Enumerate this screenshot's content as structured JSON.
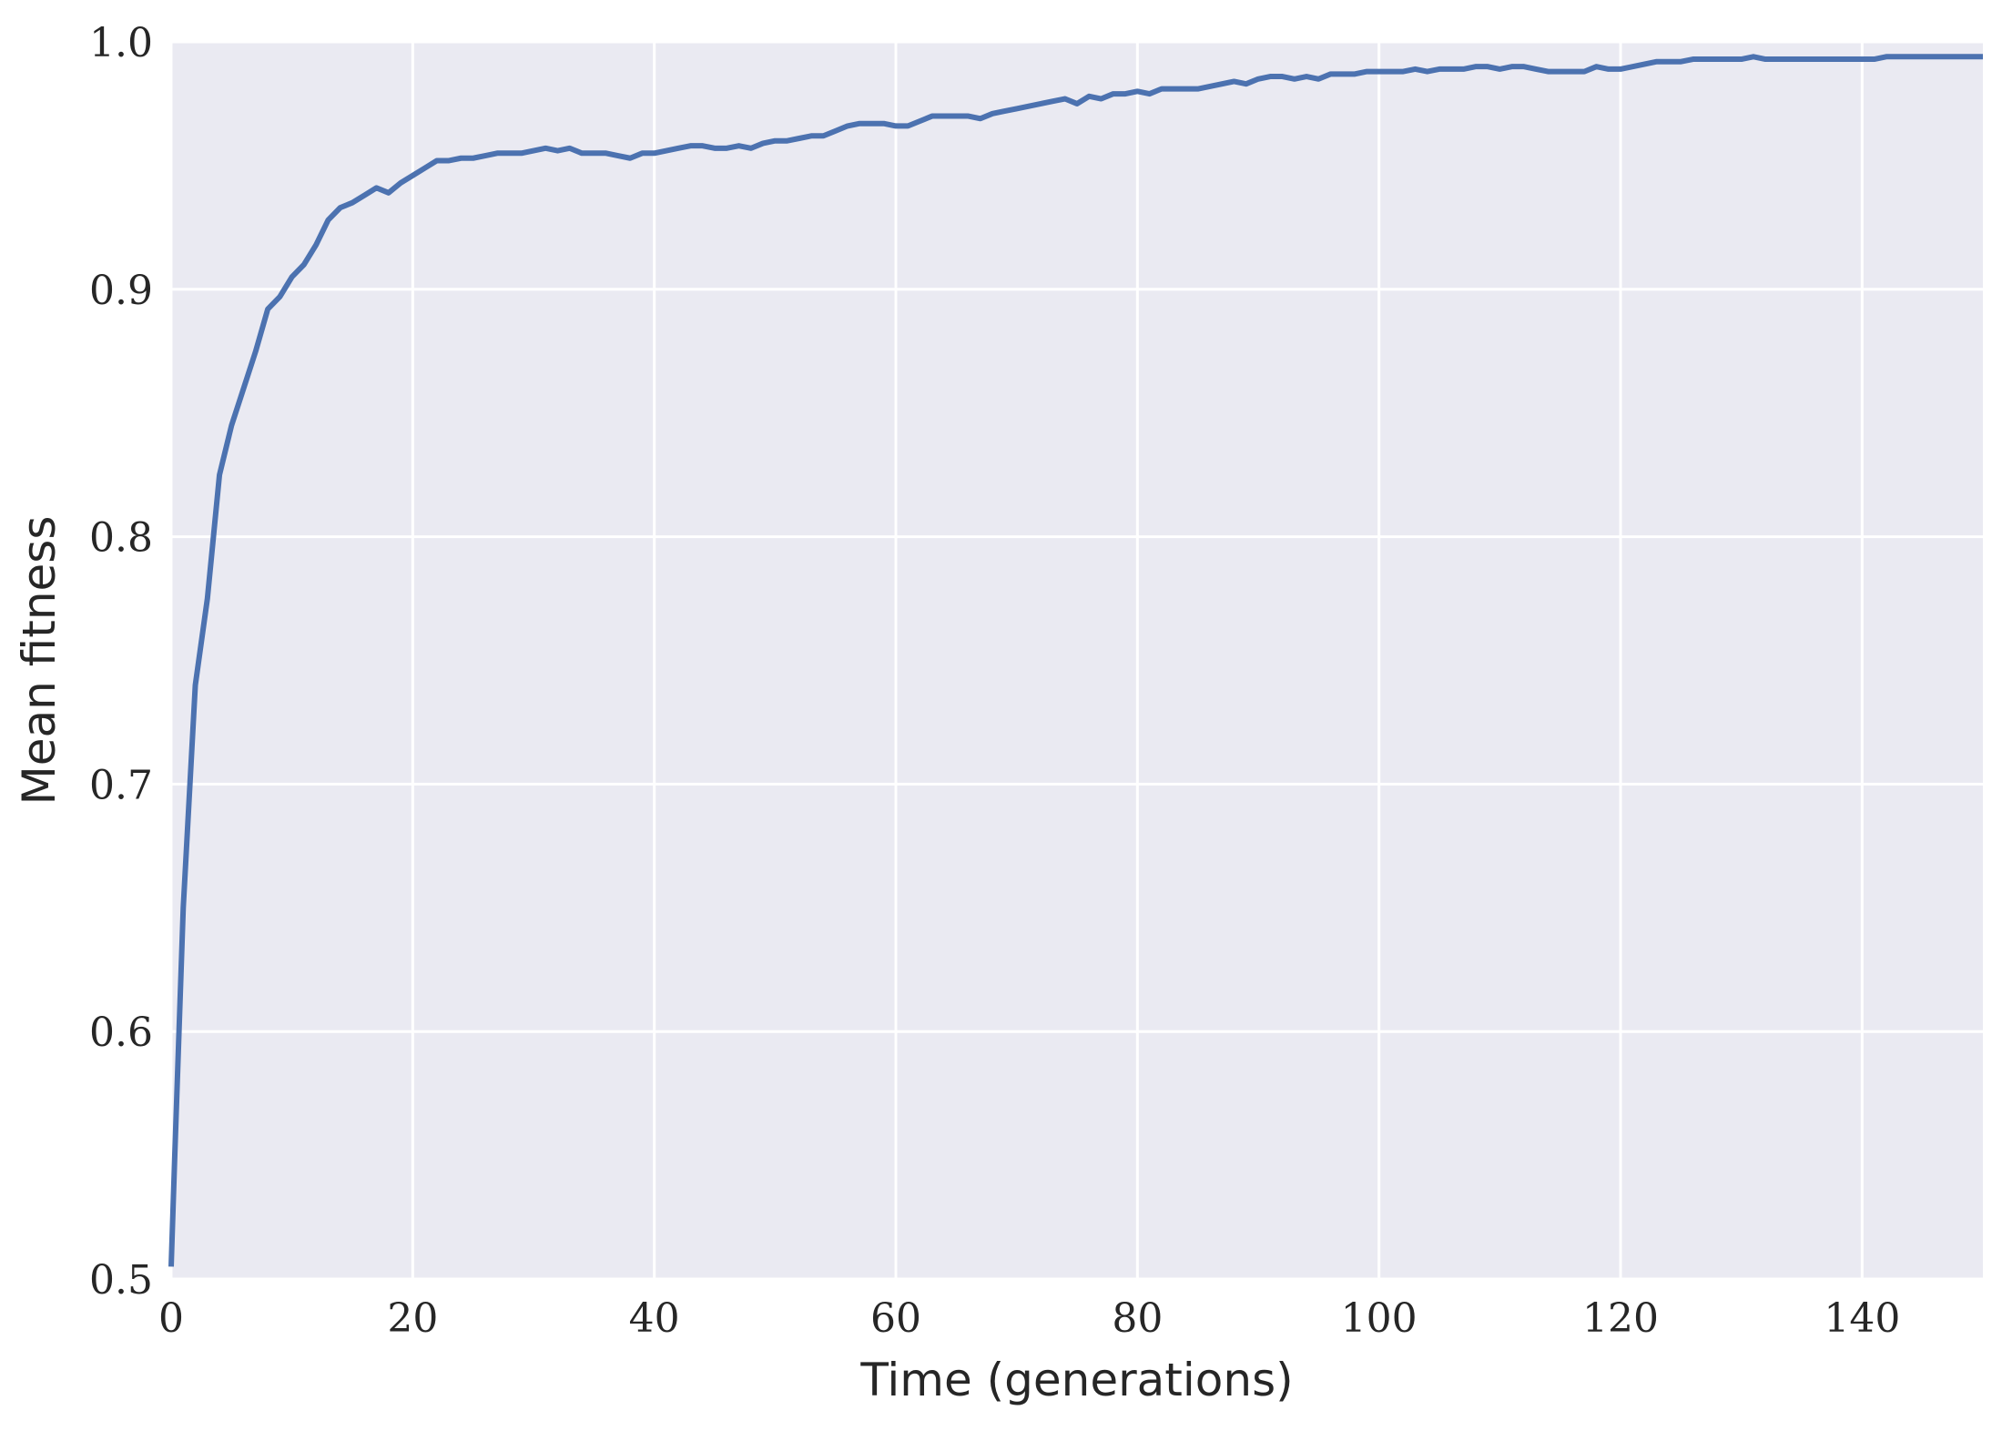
{
  "chart_data": {
    "type": "line",
    "xlabel": "Time (generations)",
    "ylabel": "Mean fitness",
    "xlim": [
      0,
      150
    ],
    "ylim": [
      0.5,
      1.0
    ],
    "x_ticks": [
      0,
      20,
      40,
      60,
      80,
      100,
      120,
      140
    ],
    "y_ticks": [
      0.5,
      0.6,
      0.7,
      0.8,
      0.9,
      1.0
    ],
    "x_tick_labels": [
      "0",
      "20",
      "40",
      "60",
      "80",
      "100",
      "120",
      "140"
    ],
    "y_tick_labels": [
      "0.5",
      "0.6",
      "0.7",
      "0.8",
      "0.9",
      "1.0"
    ],
    "grid": true,
    "background_color": "#eaeaf2",
    "grid_color": "#ffffff",
    "line_color": "#4c72b0",
    "series": [
      {
        "x": [
          0,
          0.3,
          1,
          2,
          3,
          4,
          5,
          6,
          7,
          8,
          9,
          10,
          11,
          12,
          13,
          14,
          15,
          16,
          17,
          18,
          19,
          20,
          21,
          22,
          23,
          24,
          25,
          26,
          27,
          28,
          29,
          30,
          31,
          32,
          33,
          34,
          35,
          36,
          37,
          38,
          39,
          40,
          41,
          42,
          43,
          44,
          45,
          46,
          47,
          48,
          49,
          50,
          51,
          52,
          53,
          54,
          55,
          56,
          57,
          58,
          59,
          60,
          61,
          62,
          63,
          64,
          65,
          66,
          67,
          68,
          69,
          70,
          71,
          72,
          73,
          74,
          75,
          76,
          77,
          78,
          79,
          80,
          81,
          82,
          83,
          84,
          85,
          86,
          87,
          88,
          89,
          90,
          91,
          92,
          93,
          94,
          95,
          96,
          97,
          98,
          99,
          100,
          101,
          102,
          103,
          104,
          105,
          106,
          107,
          108,
          109,
          110,
          111,
          112,
          113,
          114,
          115,
          116,
          117,
          118,
          119,
          120,
          121,
          122,
          123,
          124,
          125,
          126,
          127,
          128,
          129,
          130,
          131,
          132,
          133,
          134,
          135,
          136,
          137,
          138,
          139,
          140,
          141,
          142,
          143,
          144,
          145,
          146,
          147,
          148,
          149,
          150
        ],
        "values": [
          0.505,
          0.55,
          0.65,
          0.74,
          0.775,
          0.825,
          0.845,
          0.86,
          0.875,
          0.892,
          0.897,
          0.905,
          0.91,
          0.918,
          0.928,
          0.933,
          0.935,
          0.938,
          0.941,
          0.939,
          0.943,
          0.946,
          0.949,
          0.952,
          0.952,
          0.953,
          0.953,
          0.954,
          0.955,
          0.955,
          0.955,
          0.956,
          0.957,
          0.956,
          0.957,
          0.955,
          0.955,
          0.955,
          0.954,
          0.953,
          0.955,
          0.955,
          0.956,
          0.957,
          0.958,
          0.958,
          0.957,
          0.957,
          0.958,
          0.957,
          0.959,
          0.96,
          0.96,
          0.961,
          0.962,
          0.962,
          0.964,
          0.966,
          0.967,
          0.967,
          0.967,
          0.966,
          0.966,
          0.968,
          0.97,
          0.97,
          0.97,
          0.97,
          0.969,
          0.971,
          0.972,
          0.973,
          0.974,
          0.975,
          0.976,
          0.977,
          0.975,
          0.978,
          0.977,
          0.979,
          0.979,
          0.98,
          0.979,
          0.981,
          0.981,
          0.981,
          0.981,
          0.982,
          0.983,
          0.984,
          0.983,
          0.985,
          0.986,
          0.986,
          0.985,
          0.986,
          0.985,
          0.987,
          0.987,
          0.987,
          0.988,
          0.988,
          0.988,
          0.988,
          0.989,
          0.988,
          0.989,
          0.989,
          0.989,
          0.99,
          0.99,
          0.989,
          0.99,
          0.99,
          0.989,
          0.988,
          0.988,
          0.988,
          0.988,
          0.99,
          0.989,
          0.989,
          0.99,
          0.991,
          0.992,
          0.992,
          0.992,
          0.993,
          0.993,
          0.993,
          0.993,
          0.993,
          0.994,
          0.993,
          0.993,
          0.993,
          0.993,
          0.993,
          0.993,
          0.993,
          0.993,
          0.993,
          0.993,
          0.994,
          0.994,
          0.994,
          0.994,
          0.994,
          0.994,
          0.994,
          0.994,
          0.994
        ]
      }
    ]
  }
}
